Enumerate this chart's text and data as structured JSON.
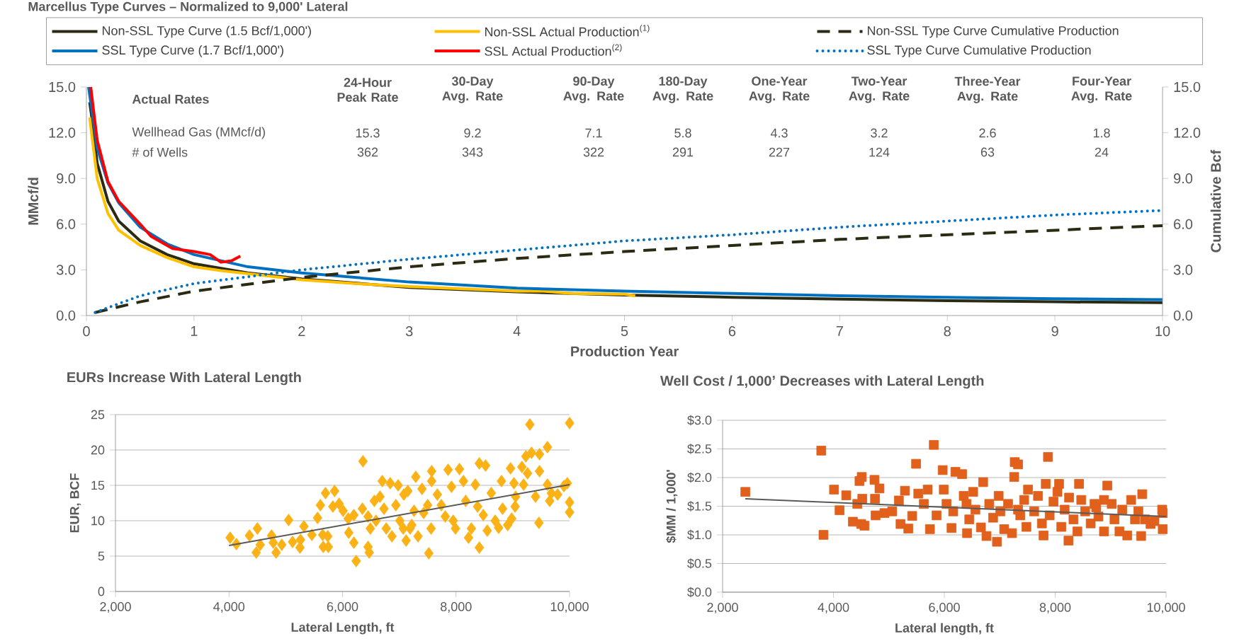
{
  "chart_data": [
    {
      "type": "line",
      "title": "Marcellus Type Curves – Normalized to 9,000' Lateral",
      "xlabel": "Production Year",
      "ylabel": "MMcf/d",
      "y2label": "Cumulative Bcf",
      "xlim": [
        0,
        10
      ],
      "xticks": [
        0,
        1,
        2,
        3,
        4,
        5,
        6,
        7,
        8,
        9,
        10
      ],
      "ylim": [
        0,
        15
      ],
      "yticks": [
        {
          "value": 0,
          "label": "0.0"
        },
        {
          "value": 3,
          "label": "3.0"
        },
        {
          "value": 6,
          "label": "6.0"
        },
        {
          "value": 9,
          "label": "9.0"
        },
        {
          "value": 12,
          "label": "12.0"
        },
        {
          "value": 15,
          "label": "15.0"
        }
      ],
      "y2lim": [
        0,
        15
      ],
      "y2ticks": [
        {
          "value": 0,
          "label": "0.0"
        },
        {
          "value": 3,
          "label": "3.0"
        },
        {
          "value": 6,
          "label": "6.0"
        },
        {
          "value": 9,
          "label": "9.0"
        },
        {
          "value": 12,
          "label": "12.0"
        },
        {
          "value": 15,
          "label": "15.0"
        }
      ],
      "legend": "top",
      "marker": "none",
      "annotations": [
        "Actual Rates",
        "24-Hour Peak Rate",
        "30-Day Avg. Rate",
        "90-Day Avg. Rate",
        "180-Day Avg. Rate",
        "One-Year Avg. Rate",
        "Two-Year Avg. Rate",
        "Three-Year Avg. Rate",
        "Four-Year Avg. Rate",
        "Wellhead Gas (MMcf/d)",
        "# of Wells",
        "15.3",
        "9.2",
        "7.1",
        "5.8",
        "4.3",
        "3.2",
        "2.6",
        "1.8",
        "362",
        "343",
        "322",
        "291",
        "227",
        "124",
        "63",
        "24"
      ],
      "series": [
        {
          "name": "Non-SSL Type Curve (1.5 Bcf/1,000')",
          "color": "#2b2a12",
          "line_style": "solid",
          "x": [
            0.03,
            0.05,
            0.1,
            0.2,
            0.3,
            0.5,
            0.75,
            1,
            1.5,
            2,
            3,
            4,
            5,
            6,
            7,
            8,
            9,
            10
          ],
          "values": [
            14,
            13,
            10,
            7.5,
            6.2,
            4.9,
            4.0,
            3.4,
            2.8,
            2.4,
            1.85,
            1.55,
            1.35,
            1.2,
            1.08,
            0.98,
            0.9,
            0.85
          ]
        },
        {
          "name": "Non-SSL Actual Production$^{(1)}$",
          "color": "#ffc000",
          "line_style": "solid",
          "x": [
            0.03,
            0.1,
            0.2,
            0.3,
            0.5,
            0.75,
            1,
            1.25,
            1.5,
            2,
            2.5,
            3,
            3.5,
            4,
            4.25,
            4.5,
            5,
            5.1
          ],
          "values": [
            13,
            9.0,
            6.7,
            5.6,
            4.6,
            3.8,
            3.2,
            2.95,
            2.75,
            2.35,
            2.1,
            1.9,
            1.75,
            1.6,
            1.6,
            1.45,
            1.4,
            1.3
          ]
        },
        {
          "name": "Non-SSL Type Curve Cumulative Production",
          "color": "#2b2a12",
          "line_style": "dashed",
          "axis": "y2",
          "x": [
            0.08,
            0.5,
            1,
            2,
            3,
            4,
            5,
            6,
            7,
            8,
            9,
            10
          ],
          "values": [
            0.2,
            0.9,
            1.6,
            2.5,
            3.2,
            3.75,
            4.2,
            4.6,
            5.0,
            5.3,
            5.6,
            5.9
          ]
        },
        {
          "name": "SSL Type Curve (1.7 Bcf/1,000')",
          "color": "#0070c0",
          "line_style": "solid",
          "x": [
            0.02,
            0.1,
            0.2,
            0.3,
            0.5,
            0.75,
            1,
            1.5,
            2,
            3,
            4,
            5,
            6,
            7,
            8,
            9,
            10
          ],
          "values": [
            15,
            11,
            8.7,
            7.4,
            5.8,
            4.7,
            4.0,
            3.2,
            2.8,
            2.2,
            1.8,
            1.6,
            1.45,
            1.3,
            1.2,
            1.1,
            1.05
          ]
        },
        {
          "name": "SSL Actual Production$^{(2)}$",
          "color": "#ff0000",
          "line_style": "solid",
          "x": [
            0.04,
            0.1,
            0.2,
            0.3,
            0.5,
            0.6,
            0.8,
            0.9,
            1.0,
            1.15,
            1.25,
            1.35,
            1.43
          ],
          "values": [
            15,
            11.5,
            8.8,
            7.5,
            6.0,
            5.2,
            4.4,
            4.3,
            4.2,
            4.0,
            3.5,
            3.6,
            3.9
          ]
        },
        {
          "name": "SSL Type Curve Cumulative Production",
          "color": "#0070c0",
          "line_style": "dotted",
          "axis": "y2",
          "x": [
            0.08,
            0.5,
            1,
            2,
            3,
            4,
            5,
            6,
            7,
            8,
            9,
            10
          ],
          "values": [
            0.2,
            1.3,
            2.1,
            3.0,
            3.7,
            4.3,
            4.9,
            5.3,
            5.8,
            6.2,
            6.6,
            6.9
          ]
        }
      ]
    },
    {
      "type": "scatter",
      "title": "EURs Increase With Lateral Length",
      "xlabel": "Lateral Length, ft",
      "ylabel": "EUR, BCF",
      "xlim": [
        2000,
        10000
      ],
      "xticks": [
        {
          "value": 2000,
          "label": "2,000"
        },
        {
          "value": 4000,
          "label": "4,000"
        },
        {
          "value": 6000,
          "label": "6,000"
        },
        {
          "value": 8000,
          "label": "8,000"
        },
        {
          "value": 10000,
          "label": "10,000"
        }
      ],
      "ylim": [
        0,
        25
      ],
      "yticks": [
        0,
        5,
        10,
        15,
        20,
        25
      ],
      "grid": "y",
      "marker": "diamond",
      "series": [
        {
          "color": "#fbb217",
          "x": [
            4020,
            4130,
            4360,
            4500,
            4480,
            4550,
            4750,
            4780,
            4830,
            4930,
            5050,
            5120,
            5250,
            5260,
            5320,
            5460,
            5560,
            5610,
            5650,
            5700,
            5750,
            5660,
            5740,
            5860,
            5830,
            5940,
            6010,
            6100,
            6200,
            6110,
            6200,
            6240,
            6360,
            6350,
            6450,
            6490,
            6450,
            6470,
            6560,
            6590,
            6700,
            6730,
            6770,
            6840,
            6870,
            6940,
            6980,
            7010,
            7080,
            7120,
            7150,
            7190,
            7260,
            7290,
            7330,
            7400,
            7430,
            7500,
            7520,
            7560,
            7570,
            7570,
            7670,
            7740,
            7810,
            7860,
            7920,
            7950,
            7990,
            8060,
            8130,
            8170,
            8220,
            8270,
            8340,
            8380,
            8410,
            8410,
            8480,
            8520,
            8550,
            8620,
            8690,
            8750,
            8800,
            8820,
            8910,
            8960,
            8980,
            9020,
            9040,
            9050,
            9160,
            9190,
            9230,
            9260,
            9300,
            9330,
            9400,
            9460,
            9470,
            9470,
            9610,
            9610,
            9650,
            9790,
            9900,
            10000,
            10000,
            10000,
            9960,
            9680,
            6660,
            7070,
            7220
          ],
          "values": [
            7.6,
            6.7,
            7.9,
            8.9,
            5.5,
            6.6,
            7.9,
            6.9,
            5.5,
            6.6,
            10.1,
            7.0,
            6.2,
            7.3,
            9.2,
            8.0,
            10.4,
            12.2,
            8.0,
            13.9,
            6.3,
            6.3,
            7.8,
            14.2,
            12.0,
            12.4,
            11.4,
            10.3,
            10.8,
            8.3,
            6.9,
            4.3,
            18.4,
            11.7,
            10.6,
            8.9,
            6.3,
            5.5,
            12.8,
            10.0,
            15.6,
            11.7,
            8.9,
            15.3,
            7.8,
            12.2,
            15.0,
            10.0,
            13.7,
            7.2,
            14.2,
            8.9,
            11.4,
            16.2,
            7.8,
            14.5,
            11.1,
            12.2,
            5.4,
            8.9,
            17.0,
            15.6,
            13.7,
            12.2,
            10.6,
            17.2,
            14.8,
            10.0,
            8.9,
            17.3,
            15.6,
            12.8,
            7.6,
            8.9,
            15.1,
            12.0,
            18.1,
            6.2,
            10.8,
            17.8,
            8.6,
            13.9,
            10.0,
            9.0,
            15.6,
            11.7,
            9.4,
            17.4,
            10.3,
            15.3,
            12.0,
            13.4,
            17.6,
            15.1,
            19.1,
            16.7,
            23.6,
            19.6,
            13.4,
            9.7,
            19.4,
            17.0,
            20.4,
            15.1,
            12.8,
            13.7,
            14.9,
            12.6,
            23.8,
            11.2,
            15.3,
            13.9,
            13.4,
            8.9,
            9.4
          ]
        },
        {
          "type": "line",
          "marker": "none",
          "color": "#595959",
          "x": [
            4000,
            10000
          ],
          "values": [
            6.5,
            15.1
          ]
        }
      ]
    },
    {
      "type": "scatter",
      "title": "Well Cost / 1,000’ Decreases with Lateral Length",
      "xlabel": "Lateral length, ft",
      "ylabel": "$MM / 1,000'",
      "xlim": [
        2000,
        10000
      ],
      "xticks": [
        {
          "value": 2000,
          "label": "2,000"
        },
        {
          "value": 4000,
          "label": "4,000"
        },
        {
          "value": 6000,
          "label": "6,000"
        },
        {
          "value": 8000,
          "label": "8,000"
        },
        {
          "value": 10000,
          "label": "10,000"
        }
      ],
      "ylim": [
        0,
        3
      ],
      "yticks": [
        {
          "value": 0,
          "label": "$0.0"
        },
        {
          "value": 0.5,
          "label": "$0.5"
        },
        {
          "value": 1,
          "label": "$1.0"
        },
        {
          "value": 1.5,
          "label": "$1.5"
        },
        {
          "value": 2,
          "label": "$2.0"
        },
        {
          "value": 2.5,
          "label": "$2.5"
        },
        {
          "value": 3,
          "label": "$3.0"
        }
      ],
      "grid": "y",
      "marker": "square",
      "series": [
        {
          "color": "#e0601c",
          "x": [
            2410,
            3780,
            3820,
            4010,
            4110,
            4230,
            4350,
            4430,
            4470,
            4510,
            4500,
            4520,
            4560,
            4740,
            4750,
            4760,
            4830,
            4920,
            5060,
            5180,
            5210,
            5290,
            5350,
            5420,
            5490,
            5530,
            5630,
            5700,
            5740,
            5810,
            5860,
            5970,
            5990,
            6040,
            6130,
            6160,
            6200,
            6320,
            6350,
            6400,
            6410,
            6450,
            6520,
            6560,
            6660,
            6700,
            6760,
            6810,
            6880,
            6950,
            6980,
            7010,
            7080,
            7150,
            7220,
            7260,
            7270,
            7330,
            7370,
            7440,
            7480,
            7510,
            7620,
            7690,
            7760,
            7790,
            7830,
            7870,
            7900,
            7970,
            8040,
            8070,
            8110,
            8170,
            8240,
            8250,
            8330,
            8400,
            8430,
            8470,
            8540,
            8640,
            8710,
            8780,
            8880,
            8880,
            8940,
            9020,
            9070,
            9160,
            9210,
            9300,
            9370,
            9440,
            9550,
            9570,
            9620,
            9720,
            9790,
            9930,
            9940,
            9940,
            9500,
            8740,
            7330
          ],
          "values": [
            1.75,
            2.47,
            1.0,
            1.79,
            1.43,
            1.69,
            1.23,
            1.54,
            1.94,
            2.01,
            1.19,
            1.63,
            1.16,
            1.96,
            1.63,
            1.34,
            1.81,
            1.38,
            1.41,
            1.6,
            1.19,
            1.77,
            1.11,
            1.33,
            2.24,
            1.72,
            1.54,
            1.79,
            1.1,
            2.57,
            1.34,
            2.13,
            1.79,
            1.54,
            1.12,
            1.41,
            2.1,
            2.06,
            1.68,
            1.54,
            1.03,
            1.27,
            1.75,
            1.44,
            1.13,
            1.92,
            0.98,
            1.54,
            1.3,
            0.88,
            1.68,
            1.41,
            1.1,
            1.54,
            1.03,
            2.01,
            2.27,
            2.23,
            1.34,
            1.61,
            1.14,
            1.79,
            1.41,
            1.68,
            1.2,
            0.99,
            1.89,
            2.36,
            1.34,
            1.58,
            1.75,
            1.89,
            1.14,
            1.44,
            0.9,
            1.65,
            1.27,
            1.06,
            1.89,
            1.61,
            1.41,
            1.2,
            1.54,
            1.32,
            1.06,
            1.61,
            1.86,
            1.54,
            1.27,
            1.06,
            1.44,
            0.99,
            1.61,
            1.27,
            0.98,
            1.71,
            1.27,
            1.19,
            1.24,
            1.44,
            1.1,
            1.38,
            1.41,
            1.48,
            1.44
          ]
        },
        {
          "type": "line",
          "marker": "none",
          "color": "#595959",
          "x": [
            2410,
            10000
          ],
          "values": [
            1.63,
            1.32
          ]
        }
      ]
    }
  ]
}
